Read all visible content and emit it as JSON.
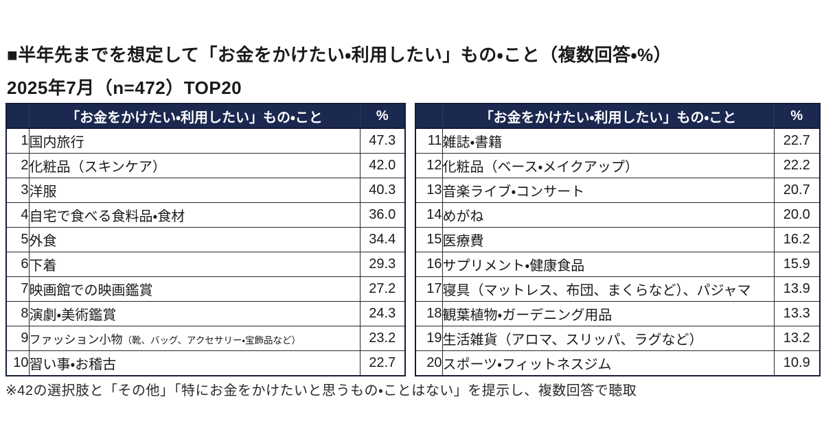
{
  "page": {
    "title_line1": "■半年先までを想定して「お金をかけたい・利用したい」もの・こと（複数回答・%）",
    "title_line2": "2025年7月（n=472）TOP20",
    "footnote": "※42の選択肢と「その他」「特にお金をかけたいと思うもの・ことはない」を提示し、複数回答で聴取"
  },
  "table_header": {
    "item": "「お金をかけたい・利用したい」もの・こと",
    "percent": "%"
  },
  "colors": {
    "header_bg": "#1b2850",
    "header_text": "#ffffff",
    "outer_border": "#141c38",
    "inner_border": "#26262e",
    "text": "#1a1a1a"
  },
  "chart_data": {
    "type": "table",
    "title": "半年先までを想定して「お金をかけたい・利用したい」もの・こと（複数回答・%）",
    "subtitle": "2025年7月（n=472）TOP20",
    "columns": [
      "順位",
      "「お金をかけたい・利用したい」もの・こと",
      "%"
    ],
    "left_rows": [
      {
        "rank": "1",
        "item": "国内旅行",
        "value": "47.3"
      },
      {
        "rank": "2",
        "item": "化粧品（スキンケア）",
        "value": "42.0"
      },
      {
        "rank": "3",
        "item": "洋服",
        "value": "40.3"
      },
      {
        "rank": "4",
        "item": "自宅で食べる食料品・食材",
        "value": "36.0"
      },
      {
        "rank": "5",
        "item": "外食",
        "value": "34.4"
      },
      {
        "rank": "6",
        "item": "下着",
        "value": "29.3"
      },
      {
        "rank": "7",
        "item": "映画館での映画鑑賞",
        "value": "27.2"
      },
      {
        "rank": "8",
        "item": "演劇・美術鑑賞",
        "value": "24.3"
      },
      {
        "rank": "9",
        "item": "ファッション小物",
        "item_note": "（靴、バッグ、アクセサリー・宝飾品など）",
        "value": "23.2"
      },
      {
        "rank": "10",
        "item": "習い事・お稽古",
        "value": "22.7"
      }
    ],
    "right_rows": [
      {
        "rank": "11",
        "item": "雑誌・書籍",
        "value": "22.7"
      },
      {
        "rank": "12",
        "item": "化粧品（ベース・メイクアップ）",
        "value": "22.2"
      },
      {
        "rank": "13",
        "item": "音楽ライブ・コンサート",
        "value": "20.7"
      },
      {
        "rank": "14",
        "item": "めがね",
        "value": "20.0"
      },
      {
        "rank": "15",
        "item": "医療費",
        "value": "16.2"
      },
      {
        "rank": "16",
        "item": "サプリメント・健康食品",
        "value": "15.9"
      },
      {
        "rank": "17",
        "item": "寝具（マットレス、布団、まくらなど）、パジャマ",
        "value": "13.9"
      },
      {
        "rank": "18",
        "item": "観葉植物・ガーデニング用品",
        "value": "13.3"
      },
      {
        "rank": "19",
        "item": "生活雑貨（アロマ、スリッパ、ラグなど）",
        "value": "13.2"
      },
      {
        "rank": "20",
        "item": "スポーツ・フィットネスジム",
        "value": "10.9"
      }
    ]
  }
}
